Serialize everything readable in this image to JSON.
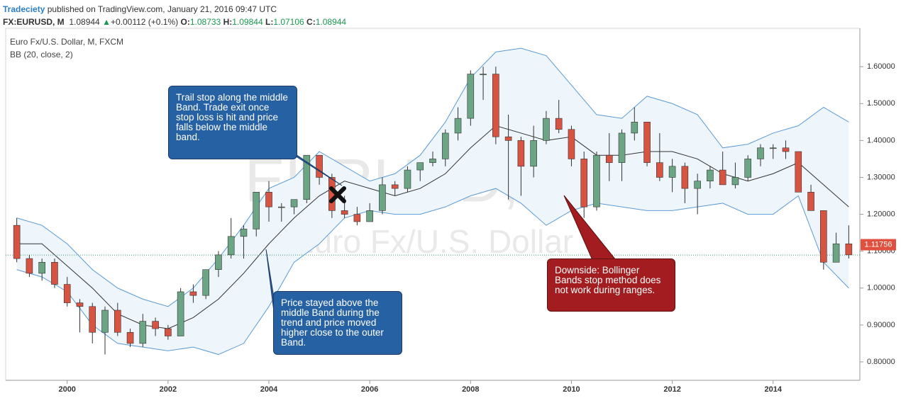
{
  "header": {
    "author": "Tradeciety",
    "published": "published on TradingView.com, January 21, 2016 09:47 UTC",
    "symbol": "FX:EURUSD, M",
    "last": "1.08944",
    "arrow": "▲",
    "change": "+0.00112 (+0.1%)",
    "o_label": "O:",
    "o": "1.08733",
    "h_label": "H:",
    "h": "1.09844",
    "l_label": "L:",
    "l": "1.07106",
    "c_label": "C:",
    "c": "1.08944"
  },
  "chart_data": {
    "type": "candlestick",
    "title": "Euro Fx/U.S. Dollar, M, FXCM",
    "indicator": "BB (20, close, 2)",
    "watermark": [
      "EURUSD, 1M",
      "Euro Fx/U.S. Dollar"
    ],
    "up_color": "#6ba583",
    "down_color": "#d75442",
    "x": [
      1999,
      1999.25,
      1999.5,
      1999.75,
      2000,
      2000.25,
      2000.5,
      2000.75,
      2001,
      2001.25,
      2001.5,
      2001.75,
      2002,
      2002.25,
      2002.5,
      2002.75,
      2003,
      2003.25,
      2003.5,
      2003.75,
      2004,
      2004.25,
      2004.5,
      2004.75,
      2005,
      2005.25,
      2005.5,
      2005.75,
      2006,
      2006.25,
      2006.5,
      2006.75,
      2007,
      2007.25,
      2007.5,
      2007.75,
      2008,
      2008.25,
      2008.5,
      2008.75,
      2009,
      2009.25,
      2009.5,
      2009.75,
      2010,
      2010.25,
      2010.5,
      2010.75,
      2011,
      2011.25,
      2011.5,
      2011.75,
      2012,
      2012.25,
      2012.5,
      2012.75,
      2013,
      2013.25,
      2013.5,
      2013.75,
      2014,
      2014.25,
      2014.5,
      2014.75,
      2015,
      2015.25,
      2015.5
    ],
    "open": [
      1.17,
      1.08,
      1.04,
      1.07,
      1.01,
      0.96,
      0.95,
      0.88,
      0.94,
      0.88,
      0.85,
      0.91,
      0.89,
      0.87,
      0.99,
      0.98,
      1.05,
      1.09,
      1.14,
      1.16,
      1.26,
      1.22,
      1.22,
      1.24,
      1.36,
      1.3,
      1.21,
      1.2,
      1.18,
      1.21,
      1.28,
      1.27,
      1.32,
      1.34,
      1.35,
      1.42,
      1.46,
      1.58,
      1.58,
      1.41,
      1.4,
      1.33,
      1.4,
      1.46,
      1.43,
      1.35,
      1.22,
      1.36,
      1.34,
      1.42,
      1.45,
      1.34,
      1.3,
      1.33,
      1.27,
      1.29,
      1.32,
      1.28,
      1.3,
      1.35,
      1.38,
      1.38,
      1.37,
      1.26,
      1.21,
      1.07,
      1.12
    ],
    "high": [
      1.19,
      1.09,
      1.08,
      1.08,
      1.03,
      0.97,
      0.96,
      0.95,
      0.96,
      0.89,
      0.93,
      0.92,
      0.9,
      1.0,
      1.01,
      1.05,
      1.1,
      1.19,
      1.17,
      1.26,
      1.29,
      1.23,
      1.24,
      1.36,
      1.36,
      1.31,
      1.25,
      1.22,
      1.23,
      1.3,
      1.29,
      1.33,
      1.34,
      1.37,
      1.43,
      1.49,
      1.59,
      1.6,
      1.6,
      1.47,
      1.41,
      1.44,
      1.48,
      1.51,
      1.44,
      1.37,
      1.37,
      1.42,
      1.43,
      1.49,
      1.45,
      1.42,
      1.35,
      1.34,
      1.31,
      1.33,
      1.37,
      1.34,
      1.36,
      1.39,
      1.39,
      1.4,
      1.37,
      1.28,
      1.21,
      1.15,
      1.17
    ],
    "low": [
      1.07,
      1.03,
      1.02,
      1.0,
      0.95,
      0.88,
      0.85,
      0.82,
      0.87,
      0.84,
      0.84,
      0.87,
      0.86,
      0.87,
      0.96,
      0.97,
      1.03,
      1.08,
      1.08,
      1.14,
      1.18,
      1.18,
      1.2,
      1.23,
      1.28,
      1.19,
      1.19,
      1.17,
      1.18,
      1.2,
      1.25,
      1.26,
      1.29,
      1.33,
      1.33,
      1.4,
      1.44,
      1.51,
      1.39,
      1.24,
      1.25,
      1.3,
      1.39,
      1.42,
      1.33,
      1.19,
      1.21,
      1.29,
      1.29,
      1.4,
      1.33,
      1.29,
      1.26,
      1.23,
      1.2,
      1.27,
      1.28,
      1.27,
      1.29,
      1.33,
      1.35,
      1.35,
      1.26,
      1.21,
      1.05,
      1.07,
      1.08
    ],
    "close": [
      1.08,
      1.04,
      1.07,
      1.01,
      0.96,
      0.95,
      0.88,
      0.94,
      0.88,
      0.85,
      0.91,
      0.89,
      0.87,
      0.99,
      0.98,
      1.05,
      1.09,
      1.14,
      1.16,
      1.26,
      1.22,
      1.22,
      1.24,
      1.36,
      1.3,
      1.21,
      1.2,
      1.18,
      1.21,
      1.28,
      1.27,
      1.32,
      1.34,
      1.35,
      1.42,
      1.46,
      1.58,
      1.58,
      1.41,
      1.4,
      1.33,
      1.4,
      1.46,
      1.43,
      1.35,
      1.22,
      1.36,
      1.34,
      1.42,
      1.45,
      1.34,
      1.3,
      1.33,
      1.27,
      1.29,
      1.32,
      1.28,
      1.3,
      1.35,
      1.38,
      1.38,
      1.37,
      1.26,
      1.21,
      1.07,
      1.12,
      1.09
    ],
    "bands": {
      "color": "#5b9bd5",
      "basis_color": "#333333",
      "fill": "#eef5fb",
      "x": [
        1999,
        1999.5,
        2000,
        2000.5,
        2001,
        2001.5,
        2002,
        2002.5,
        2003,
        2003.5,
        2004,
        2004.5,
        2005,
        2005.5,
        2006,
        2006.5,
        2007,
        2007.5,
        2008,
        2008.5,
        2009,
        2009.5,
        2010,
        2010.5,
        2011,
        2011.5,
        2012,
        2012.5,
        2013,
        2013.5,
        2014,
        2014.5,
        2015,
        2015.5
      ],
      "upper": [
        1.19,
        1.17,
        1.12,
        1.05,
        1.0,
        0.97,
        0.95,
        1.0,
        1.08,
        1.17,
        1.27,
        1.3,
        1.37,
        1.33,
        1.29,
        1.31,
        1.36,
        1.45,
        1.57,
        1.64,
        1.65,
        1.63,
        1.55,
        1.47,
        1.46,
        1.52,
        1.5,
        1.47,
        1.38,
        1.39,
        1.42,
        1.44,
        1.49,
        1.45
      ],
      "basis": [
        1.12,
        1.12,
        1.06,
        1.0,
        0.93,
        0.9,
        0.89,
        0.92,
        0.97,
        1.04,
        1.12,
        1.19,
        1.25,
        1.29,
        1.27,
        1.25,
        1.27,
        1.31,
        1.38,
        1.44,
        1.42,
        1.4,
        1.41,
        1.36,
        1.36,
        1.37,
        1.37,
        1.35,
        1.31,
        1.29,
        1.31,
        1.34,
        1.28,
        1.22
      ],
      "lower": [
        1.05,
        1.03,
        0.99,
        0.9,
        0.85,
        0.84,
        0.83,
        0.84,
        0.82,
        0.85,
        0.95,
        1.07,
        1.12,
        1.19,
        1.21,
        1.2,
        1.2,
        1.22,
        1.25,
        1.27,
        1.23,
        1.17,
        1.21,
        1.23,
        1.22,
        1.21,
        1.21,
        1.22,
        1.23,
        1.2,
        1.2,
        1.25,
        1.07,
        1.0
      ]
    },
    "last_price": 1.11756,
    "close_line": 1.08944,
    "xlim": [
      1998.78,
      2015.72
    ],
    "xticks": [
      2000,
      2002,
      2004,
      2006,
      2008,
      2010,
      2012,
      2014
    ],
    "ylim": [
      0.75,
      1.704
    ],
    "yticks": [
      {
        "value": 0.8,
        "label": "0.80000"
      },
      {
        "value": 0.9,
        "label": "0.90000"
      },
      {
        "value": 1.0,
        "label": "1.00000"
      },
      {
        "value": 1.1,
        "label": "1.10000"
      },
      {
        "value": 1.2,
        "label": "1.20000"
      },
      {
        "value": 1.3,
        "label": "1.30000"
      },
      {
        "value": 1.4,
        "label": "1.40000"
      },
      {
        "value": 1.5,
        "label": "1.50000"
      },
      {
        "value": 1.6,
        "label": "1.60000"
      }
    ],
    "annotations": [
      "Trail stop along the middle Band. Trade exit once stop loss is hit and price falls below the middle band.",
      "Price stayed above the middle Band during the trend and price moved higher close to the outer Band.",
      "Downside: Bollinger Bands stop method does not work during ranges."
    ]
  }
}
